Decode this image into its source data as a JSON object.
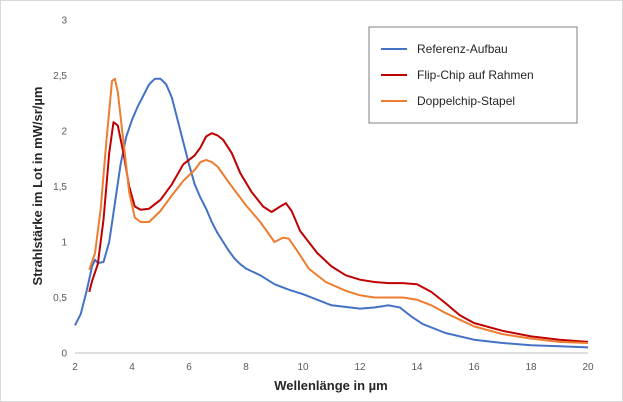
{
  "chart_data": {
    "type": "line",
    "title": "",
    "xlabel": "Wellenlänge in µm",
    "ylabel": "Strahlstärke im Lot in mW/sr/µm",
    "xlim": [
      2,
      20
    ],
    "ylim": [
      0,
      3
    ],
    "x_ticks": [
      "2",
      "4",
      "6",
      "8",
      "10",
      "12",
      "14",
      "16",
      "18",
      "20"
    ],
    "y_ticks": [
      "0",
      "0,5",
      "1",
      "1,5",
      "2",
      "2,5",
      "3"
    ],
    "grid": {
      "x": false,
      "y": false
    },
    "legend_position": "top-right",
    "series": [
      {
        "name": "Referenz-Aufbau",
        "color": "#4472c4",
        "points": [
          [
            2.0,
            0.25
          ],
          [
            2.2,
            0.35
          ],
          [
            2.4,
            0.55
          ],
          [
            2.6,
            0.78
          ],
          [
            2.7,
            0.84
          ],
          [
            2.8,
            0.81
          ],
          [
            3.0,
            0.82
          ],
          [
            3.2,
            1.0
          ],
          [
            3.4,
            1.35
          ],
          [
            3.6,
            1.7
          ],
          [
            3.8,
            1.95
          ],
          [
            4.0,
            2.1
          ],
          [
            4.2,
            2.22
          ],
          [
            4.4,
            2.32
          ],
          [
            4.6,
            2.42
          ],
          [
            4.8,
            2.47
          ],
          [
            5.0,
            2.47
          ],
          [
            5.2,
            2.42
          ],
          [
            5.4,
            2.3
          ],
          [
            5.6,
            2.1
          ],
          [
            5.8,
            1.9
          ],
          [
            6.0,
            1.7
          ],
          [
            6.2,
            1.52
          ],
          [
            6.4,
            1.4
          ],
          [
            6.6,
            1.3
          ],
          [
            6.8,
            1.18
          ],
          [
            7.0,
            1.08
          ],
          [
            7.2,
            1.0
          ],
          [
            7.4,
            0.92
          ],
          [
            7.6,
            0.85
          ],
          [
            7.8,
            0.8
          ],
          [
            8.0,
            0.76
          ],
          [
            8.5,
            0.7
          ],
          [
            9.0,
            0.62
          ],
          [
            9.5,
            0.57
          ],
          [
            10.0,
            0.53
          ],
          [
            11.0,
            0.43
          ],
          [
            12.0,
            0.4
          ],
          [
            12.5,
            0.41
          ],
          [
            13.0,
            0.43
          ],
          [
            13.4,
            0.41
          ],
          [
            13.8,
            0.33
          ],
          [
            14.2,
            0.26
          ],
          [
            15.0,
            0.18
          ],
          [
            16.0,
            0.12
          ],
          [
            17.0,
            0.09
          ],
          [
            18.0,
            0.07
          ],
          [
            19.0,
            0.06
          ],
          [
            20.0,
            0.05
          ]
        ]
      },
      {
        "name": "Flip-Chip auf Rahmen",
        "color": "#c00000",
        "points": [
          [
            2.5,
            0.55
          ],
          [
            2.6,
            0.65
          ],
          [
            2.8,
            0.8
          ],
          [
            3.0,
            1.2
          ],
          [
            3.2,
            1.8
          ],
          [
            3.35,
            2.08
          ],
          [
            3.5,
            2.05
          ],
          [
            3.7,
            1.8
          ],
          [
            3.9,
            1.5
          ],
          [
            4.1,
            1.32
          ],
          [
            4.3,
            1.29
          ],
          [
            4.6,
            1.3
          ],
          [
            5.0,
            1.38
          ],
          [
            5.4,
            1.52
          ],
          [
            5.8,
            1.7
          ],
          [
            6.2,
            1.78
          ],
          [
            6.4,
            1.85
          ],
          [
            6.6,
            1.95
          ],
          [
            6.8,
            1.98
          ],
          [
            7.0,
            1.96
          ],
          [
            7.2,
            1.92
          ],
          [
            7.5,
            1.8
          ],
          [
            7.8,
            1.62
          ],
          [
            8.2,
            1.45
          ],
          [
            8.6,
            1.32
          ],
          [
            8.9,
            1.27
          ],
          [
            9.2,
            1.32
          ],
          [
            9.4,
            1.35
          ],
          [
            9.6,
            1.28
          ],
          [
            9.9,
            1.1
          ],
          [
            10.5,
            0.9
          ],
          [
            11.0,
            0.78
          ],
          [
            11.5,
            0.7
          ],
          [
            12.0,
            0.66
          ],
          [
            12.5,
            0.64
          ],
          [
            13.0,
            0.63
          ],
          [
            13.5,
            0.63
          ],
          [
            14.0,
            0.62
          ],
          [
            14.5,
            0.55
          ],
          [
            15.0,
            0.45
          ],
          [
            15.5,
            0.34
          ],
          [
            16.0,
            0.27
          ],
          [
            17.0,
            0.2
          ],
          [
            18.0,
            0.15
          ],
          [
            19.0,
            0.12
          ],
          [
            20.0,
            0.1
          ]
        ]
      },
      {
        "name": "Doppelchip-Stapel",
        "color": "#ed7d31",
        "points": [
          [
            2.5,
            0.75
          ],
          [
            2.7,
            0.9
          ],
          [
            2.9,
            1.3
          ],
          [
            3.1,
            1.9
          ],
          [
            3.3,
            2.45
          ],
          [
            3.4,
            2.47
          ],
          [
            3.5,
            2.35
          ],
          [
            3.7,
            1.9
          ],
          [
            3.9,
            1.45
          ],
          [
            4.1,
            1.22
          ],
          [
            4.3,
            1.18
          ],
          [
            4.6,
            1.18
          ],
          [
            5.0,
            1.28
          ],
          [
            5.4,
            1.42
          ],
          [
            5.8,
            1.55
          ],
          [
            6.2,
            1.65
          ],
          [
            6.4,
            1.72
          ],
          [
            6.6,
            1.74
          ],
          [
            6.8,
            1.72
          ],
          [
            7.0,
            1.68
          ],
          [
            7.5,
            1.5
          ],
          [
            8.0,
            1.33
          ],
          [
            8.5,
            1.18
          ],
          [
            9.0,
            1.0
          ],
          [
            9.3,
            1.04
          ],
          [
            9.5,
            1.03
          ],
          [
            9.8,
            0.92
          ],
          [
            10.2,
            0.76
          ],
          [
            10.8,
            0.64
          ],
          [
            11.5,
            0.56
          ],
          [
            12.0,
            0.52
          ],
          [
            12.5,
            0.5
          ],
          [
            13.0,
            0.5
          ],
          [
            13.5,
            0.5
          ],
          [
            14.0,
            0.48
          ],
          [
            14.5,
            0.43
          ],
          [
            15.0,
            0.36
          ],
          [
            15.5,
            0.3
          ],
          [
            16.0,
            0.24
          ],
          [
            17.0,
            0.17
          ],
          [
            18.0,
            0.13
          ],
          [
            19.0,
            0.1
          ],
          [
            20.0,
            0.09
          ]
        ]
      }
    ]
  }
}
